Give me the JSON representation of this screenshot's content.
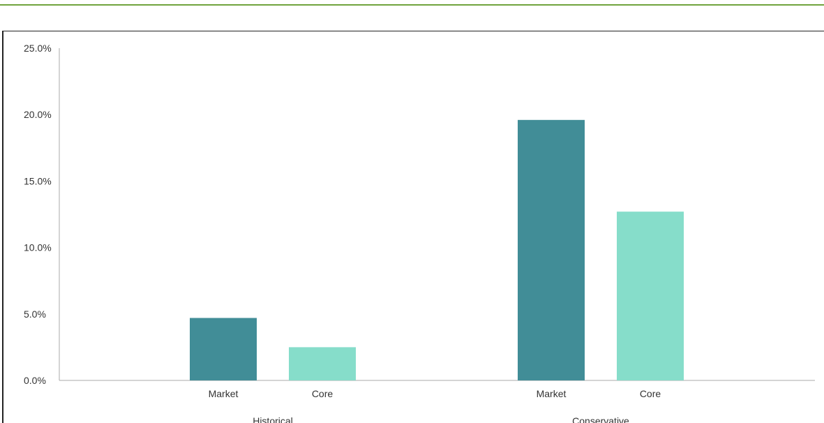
{
  "colors": {
    "market": "#418d97",
    "core": "#86ddca",
    "accent_rule": "#70a33d",
    "axis": "#aaaaaa",
    "text": "#333333"
  },
  "chart_data": {
    "type": "bar",
    "groups": [
      "Historical",
      "Conservative"
    ],
    "categories": [
      "Market",
      "Core"
    ],
    "series": [
      {
        "group": "Historical",
        "values": [
          4.7,
          2.5
        ]
      },
      {
        "group": "Conservative",
        "values": [
          19.6,
          12.7
        ]
      }
    ],
    "y_ticks": [
      "0.0%",
      "5.0%",
      "10.0%",
      "15.0%",
      "20.0%",
      "25.0%"
    ],
    "ylim": [
      0,
      25
    ],
    "title": "",
    "xlabel": "",
    "ylabel": "",
    "grid": false,
    "legend": "none"
  }
}
